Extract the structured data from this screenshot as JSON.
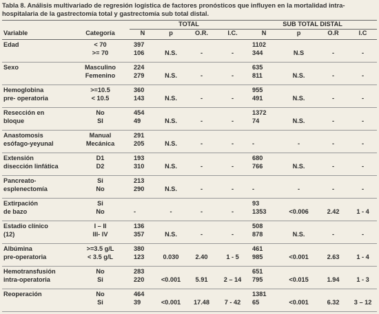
{
  "title": "Tabla 8. Análisis multivariado de regresión logística de factores pronósticos que influyen en la mortalidad intra-hospitalaria de la gastrectomía total y gastrectomía sub total distal.",
  "table": {
    "groups": [
      "TOTAL",
      "SUB TOTAL DISTAL"
    ],
    "columns": [
      "Variable",
      "Categoría",
      "N",
      "p",
      "O.R.",
      "I.C.",
      "N",
      "p",
      "O.R",
      "I.C"
    ],
    "rows": [
      {
        "variable": [
          "Edad"
        ],
        "lines": [
          [
            "< 70",
            "397",
            null,
            null,
            null,
            "1102",
            null,
            null,
            null
          ],
          [
            ">= 70",
            "106",
            "N.S.",
            "-",
            "-",
            "344",
            "N.S",
            "-",
            "-"
          ]
        ]
      },
      {
        "variable": [
          "Sexo"
        ],
        "lines": [
          [
            "Masculino",
            "224",
            null,
            null,
            null,
            "635",
            null,
            null,
            null
          ],
          [
            "Femenino",
            "279",
            "N.S.",
            "-",
            "-",
            "811",
            "N.S.",
            "-",
            "-"
          ]
        ]
      },
      {
        "variable": [
          "Hemoglobina",
          "pre- operatoria"
        ],
        "lines": [
          [
            ">=10.5",
            "360",
            null,
            null,
            null,
            "955",
            null,
            null,
            null
          ],
          [
            "< 10.5",
            "143",
            "N.S.",
            "-",
            "-",
            "491",
            "N.S.",
            "-",
            "-"
          ]
        ]
      },
      {
        "variable": [
          "Resección en",
          "bloque"
        ],
        "lines": [
          [
            "No",
            "454",
            null,
            null,
            null,
            "1372",
            null,
            null,
            null
          ],
          [
            "SI",
            "49",
            "N.S.",
            "-",
            "-",
            "74",
            "N.S.",
            "-",
            "-"
          ]
        ]
      },
      {
        "variable": [
          "Anastomosis",
          "esófago-yeyunal"
        ],
        "lines": [
          [
            "Manual",
            "291",
            null,
            null,
            null,
            null,
            null,
            null,
            null
          ],
          [
            "Mecánica",
            "205",
            "N.S.",
            "-",
            "-",
            "-",
            "-",
            "-",
            "-"
          ]
        ]
      },
      {
        "variable": [
          "Extensión",
          "disección linfática"
        ],
        "lines": [
          [
            "D1",
            "193",
            null,
            null,
            null,
            "680",
            null,
            null,
            null
          ],
          [
            "D2",
            "310",
            "N.S.",
            "-",
            "-",
            "766",
            "N.S.",
            "-",
            "-"
          ]
        ]
      },
      {
        "variable": [
          "Pancreato-",
          "esplenectomía"
        ],
        "lines": [
          [
            "Si",
            "213",
            null,
            null,
            null,
            null,
            null,
            null,
            null
          ],
          [
            "No",
            "290",
            "N.S.",
            "-",
            "-",
            "-",
            "-",
            "-",
            "-"
          ]
        ]
      },
      {
        "variable": [
          "Extirpación",
          "de bazo"
        ],
        "lines": [
          [
            "Si",
            null,
            null,
            null,
            null,
            "93",
            null,
            null,
            null
          ],
          [
            "No",
            "-",
            "-",
            "-",
            "-",
            "1353",
            "<0.006",
            "2.42",
            "1 - 4"
          ]
        ]
      },
      {
        "variable": [
          "Estadio clínico",
          "(12)"
        ],
        "lines": [
          [
            "I – II",
            "136",
            null,
            null,
            null,
            "508",
            null,
            null,
            null
          ],
          [
            "III- IV",
            "357",
            "N.S.",
            "-",
            "-",
            "878",
            "N.S.",
            "-",
            "-"
          ]
        ]
      },
      {
        "variable": [
          "Albúmina",
          "pre-operatoria"
        ],
        "lines": [
          [
            ">=3.5 g/L",
            "380",
            null,
            null,
            null,
            "461",
            null,
            null,
            null
          ],
          [
            "< 3.5 g/L",
            "123",
            "0.030",
            "2.40",
            "1 - 5",
            "985",
            "<0.001",
            "2.63",
            "1 - 4"
          ]
        ]
      },
      {
        "variable": [
          "Hemotransfusión",
          "intra-operatoria"
        ],
        "lines": [
          [
            "No",
            "283",
            null,
            null,
            null,
            "651",
            null,
            null,
            null
          ],
          [
            "Si",
            "220",
            "<0.001",
            "5.91",
            "2 – 14",
            "795",
            "<0.015",
            "1.94",
            "1 - 3"
          ]
        ]
      },
      {
        "variable": [
          "Reoperación"
        ],
        "lines": [
          [
            "No",
            "464",
            null,
            null,
            null,
            "1381",
            null,
            null,
            null
          ],
          [
            "Si",
            "39",
            "<0.001",
            "17.48",
            "7 - 42",
            "65",
            "<0.001",
            "6.32",
            "3 – 12"
          ]
        ]
      }
    ]
  }
}
